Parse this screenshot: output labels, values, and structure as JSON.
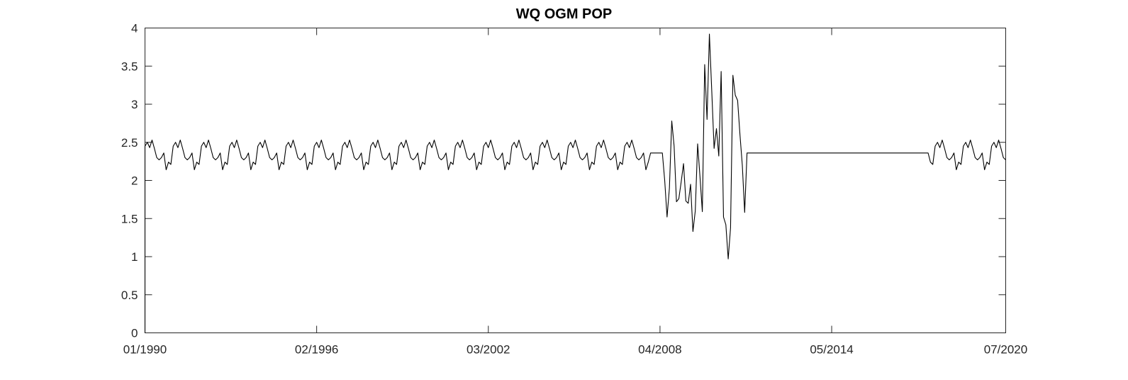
{
  "chart_data": {
    "type": "line",
    "title": "WQ OGM POP",
    "xlabel": "",
    "ylabel": "",
    "x_start": "01/1990",
    "x_end": "07/2020",
    "xticks": [
      "01/1990",
      "02/1996",
      "03/2002",
      "04/2008",
      "05/2014",
      "07/2020"
    ],
    "yticks": [
      "0",
      "0.5",
      "1",
      "1.5",
      "2",
      "2.5",
      "3",
      "3.5",
      "4"
    ],
    "ylim": [
      0,
      4
    ],
    "grid": false,
    "line_color": "#000000",
    "series": [
      {
        "name": "",
        "seasonal_profile": [
          2.45,
          2.5,
          2.43,
          2.53,
          2.42,
          2.3,
          2.27,
          2.3,
          2.36,
          2.14,
          2.24,
          2.21
        ],
        "seasonal_ranges": [
          [
            "01/1990",
            "11/2007"
          ],
          [
            "11/2017",
            "07/2020"
          ]
        ],
        "constant_value": 2.36,
        "constant_ranges": [
          [
            "12/2007",
            "05/2008"
          ],
          [
            "09/2012",
            "10/2017"
          ]
        ],
        "points": [
          [
            "06/2008",
            2.0
          ],
          [
            "07/2008",
            1.52
          ],
          [
            "08/2008",
            1.9
          ],
          [
            "09/2008",
            2.78
          ],
          [
            "10/2008",
            2.45
          ],
          [
            "11/2008",
            1.72
          ],
          [
            "12/2008",
            1.76
          ],
          [
            "01/2009",
            1.98
          ],
          [
            "02/2009",
            2.22
          ],
          [
            "03/2009",
            1.73
          ],
          [
            "04/2009",
            1.7
          ],
          [
            "05/2009",
            1.95
          ],
          [
            "06/2009",
            1.33
          ],
          [
            "07/2009",
            1.6
          ],
          [
            "08/2009",
            2.48
          ],
          [
            "09/2009",
            2.05
          ],
          [
            "10/2009",
            1.59
          ],
          [
            "11/2009",
            3.52
          ],
          [
            "12/2009",
            2.8
          ],
          [
            "01/2010",
            3.92
          ],
          [
            "02/2010",
            3.18
          ],
          [
            "03/2010",
            2.42
          ],
          [
            "04/2010",
            2.68
          ],
          [
            "05/2010",
            2.32
          ],
          [
            "06/2010",
            3.43
          ],
          [
            "07/2010",
            1.52
          ],
          [
            "08/2010",
            1.42
          ],
          [
            "09/2010",
            0.97
          ],
          [
            "10/2010",
            1.38
          ],
          [
            "11/2010",
            3.38
          ],
          [
            "12/2010",
            3.12
          ],
          [
            "01/2011",
            3.05
          ],
          [
            "02/2011",
            2.6
          ],
          [
            "03/2011",
            2.2
          ],
          [
            "04/2011",
            1.58
          ],
          [
            "05/2011",
            2.36
          ]
        ]
      }
    ]
  }
}
